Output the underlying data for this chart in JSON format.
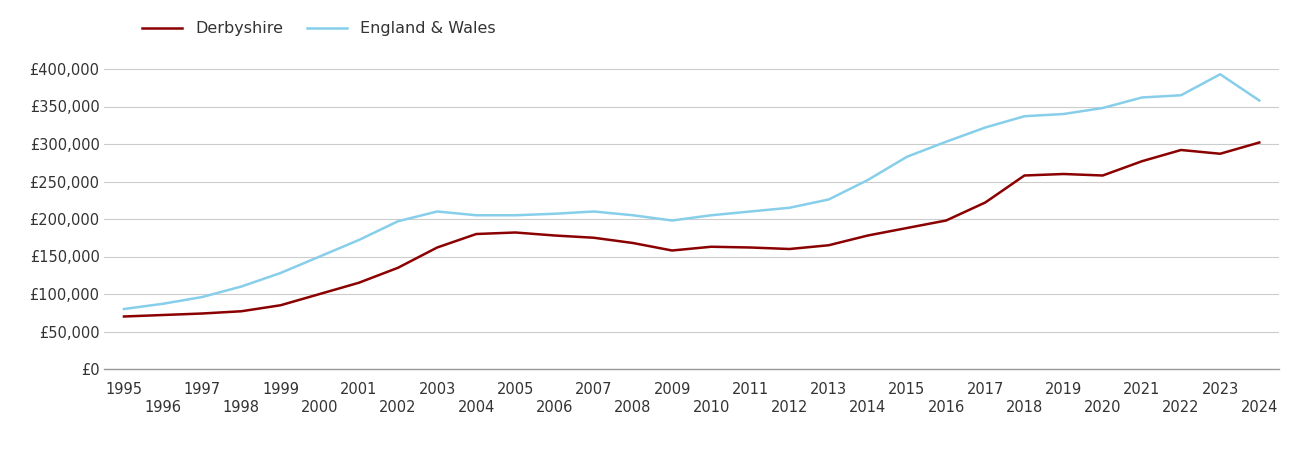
{
  "years": [
    1995,
    1996,
    1997,
    1998,
    1999,
    2000,
    2001,
    2002,
    2003,
    2004,
    2005,
    2006,
    2007,
    2008,
    2009,
    2010,
    2011,
    2012,
    2013,
    2014,
    2015,
    2016,
    2017,
    2018,
    2019,
    2020,
    2021,
    2022,
    2023,
    2024
  ],
  "derbyshire": [
    70000,
    72000,
    74000,
    77000,
    85000,
    100000,
    115000,
    135000,
    162000,
    180000,
    182000,
    178000,
    175000,
    168000,
    158000,
    163000,
    162000,
    160000,
    165000,
    178000,
    188000,
    198000,
    222000,
    258000,
    260000,
    258000,
    277000,
    292000,
    287000,
    302000
  ],
  "england_wales": [
    80000,
    87000,
    96000,
    110000,
    128000,
    150000,
    172000,
    197000,
    210000,
    205000,
    205000,
    207000,
    210000,
    205000,
    198000,
    205000,
    210000,
    215000,
    226000,
    252000,
    283000,
    303000,
    322000,
    337000,
    340000,
    348000,
    362000,
    365000,
    393000,
    358000
  ],
  "derbyshire_color": "#8B0000",
  "england_wales_color": "#87CEEB",
  "background_color": "#ffffff",
  "grid_color": "#cccccc",
  "ylim": [
    0,
    420000
  ],
  "yticks": [
    0,
    50000,
    100000,
    150000,
    200000,
    250000,
    300000,
    350000,
    400000
  ],
  "legend_labels": [
    "Derbyshire",
    "England & Wales"
  ],
  "linewidth": 1.8,
  "tick_fontsize": 10.5,
  "legend_fontsize": 11.5
}
